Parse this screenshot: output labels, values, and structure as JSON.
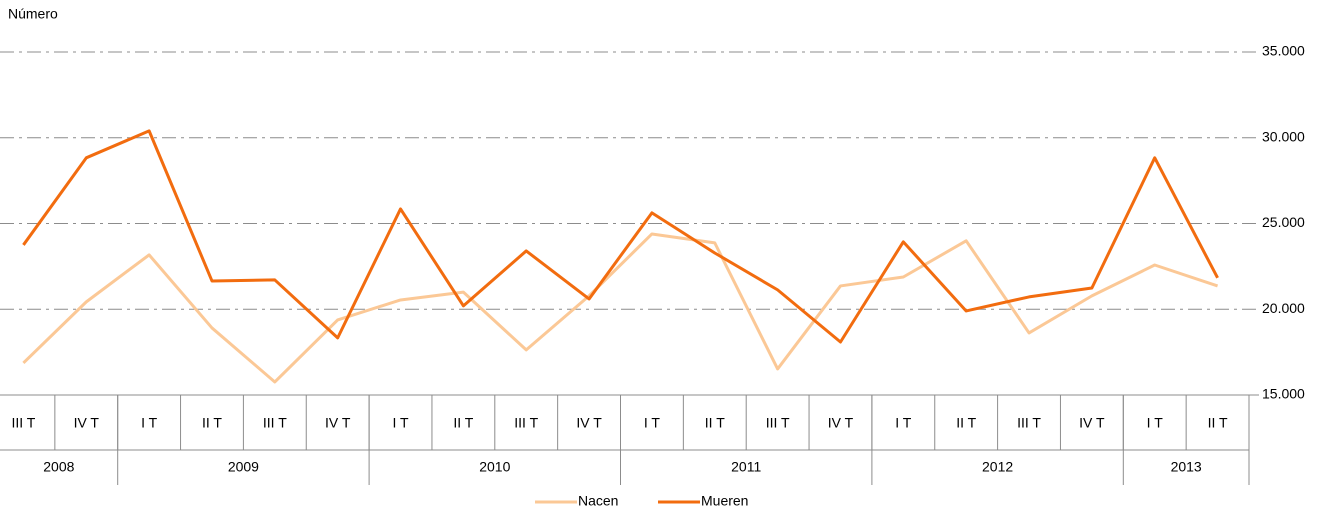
{
  "chart_data": {
    "type": "line",
    "y_axis_label": "Número",
    "categories": [
      "III T",
      "IV T",
      "I T",
      "II T",
      "III T",
      "IV T",
      "I T",
      "II T",
      "III T",
      "IV T",
      "I T",
      "II T",
      "III T",
      "IV T",
      "I T",
      "II T",
      "III T",
      "IV T",
      "I T",
      "II T"
    ],
    "year_groups": [
      {
        "label": "2008",
        "span": 2
      },
      {
        "label": "2009",
        "span": 4
      },
      {
        "label": "2010",
        "span": 4
      },
      {
        "label": "2011",
        "span": 4
      },
      {
        "label": "2012",
        "span": 4
      },
      {
        "label": "2013",
        "span": 2
      }
    ],
    "series": [
      {
        "name": "Nacen",
        "color": "#fbc896",
        "values": [
          16870,
          20430,
          23170,
          18910,
          15760,
          19380,
          20540,
          21000,
          17630,
          20780,
          24390,
          23870,
          16520,
          21360,
          21880,
          23990,
          18620,
          20780,
          22580,
          21360
        ]
      },
      {
        "name": "Mueren",
        "color": "#f26c0f",
        "values": [
          23750,
          28830,
          30400,
          21650,
          21710,
          18330,
          25850,
          20200,
          23400,
          20600,
          25620,
          23280,
          21130,
          18090,
          23930,
          19900,
          20720,
          21240,
          28830,
          21830
        ]
      }
    ],
    "ylim": [
      15000,
      35000
    ],
    "yticks": [
      {
        "value": 15000,
        "label": "15.000"
      },
      {
        "value": 20000,
        "label": "20.000"
      },
      {
        "value": 25000,
        "label": "25.000"
      },
      {
        "value": 30000,
        "label": "30.000"
      },
      {
        "value": 35000,
        "label": "35.000"
      }
    ],
    "grid": true,
    "legend": "bottom"
  }
}
